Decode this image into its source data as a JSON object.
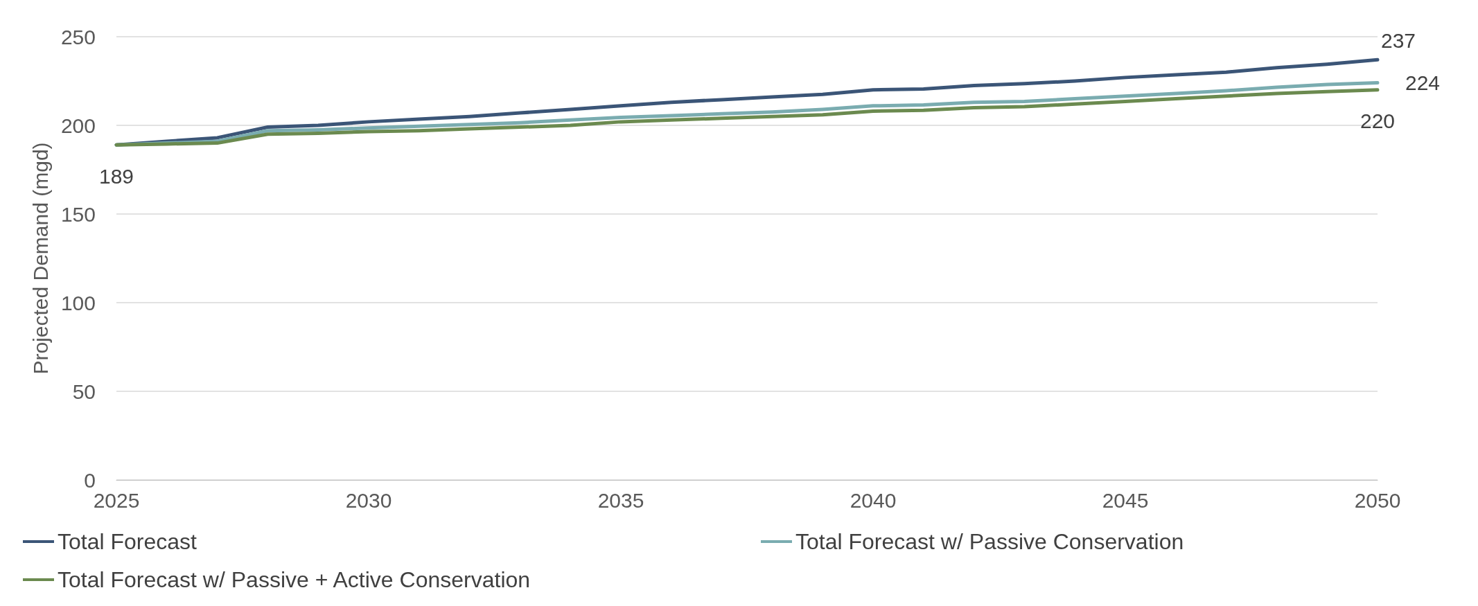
{
  "chart_data": {
    "type": "line",
    "ylabel": "Projected Demand (mgd)",
    "x": [
      2025,
      2026,
      2027,
      2028,
      2029,
      2030,
      2031,
      2032,
      2033,
      2034,
      2035,
      2036,
      2037,
      2038,
      2039,
      2040,
      2041,
      2042,
      2043,
      2044,
      2045,
      2046,
      2047,
      2048,
      2049,
      2050
    ],
    "xlim": [
      2025,
      2050
    ],
    "xticks": [
      2025,
      2030,
      2035,
      2040,
      2045,
      2050
    ],
    "ylim": [
      0,
      250
    ],
    "yticks": [
      0,
      50,
      100,
      150,
      200,
      250
    ],
    "grid": "y",
    "legend": "bottom",
    "marker": "none",
    "line_style": "solid",
    "series": [
      {
        "name": "Total Forecast",
        "color": "#3b5577",
        "values": [
          189,
          191,
          193,
          199,
          200,
          202,
          203.5,
          205,
          207,
          209,
          211,
          213,
          214.5,
          216,
          217.5,
          220,
          220.5,
          222.5,
          223.5,
          225,
          227,
          228.5,
          230,
          232.5,
          234.5,
          237
        ],
        "value_labels": [
          null,
          null,
          null,
          null,
          null,
          null,
          null,
          null,
          null,
          null,
          null,
          null,
          null,
          null,
          null,
          null,
          null,
          null,
          null,
          null,
          null,
          null,
          null,
          null,
          null,
          "237"
        ]
      },
      {
        "name": "Total Forecast w/ Passive Conservation",
        "color": "#7aacb0",
        "values": [
          189,
          190,
          191,
          197,
          197.5,
          198.5,
          199.5,
          200.5,
          201.5,
          203,
          204.5,
          205.5,
          206.5,
          207.5,
          209,
          211,
          211.5,
          213,
          213.5,
          215,
          216.5,
          218,
          219.5,
          221.5,
          223,
          224
        ],
        "value_labels": [
          null,
          null,
          null,
          null,
          null,
          null,
          null,
          null,
          null,
          null,
          null,
          null,
          null,
          null,
          null,
          null,
          null,
          null,
          null,
          null,
          null,
          null,
          null,
          null,
          null,
          "224"
        ]
      },
      {
        "name": "Total Forecast w/ Passive + Active Conservation",
        "color": "#6b8a4f",
        "values": [
          189,
          189.5,
          190,
          195,
          195.5,
          196.5,
          197,
          198,
          199,
          200,
          202,
          203,
          204,
          205,
          206,
          208,
          208.5,
          210,
          210.5,
          212,
          213.5,
          215,
          216.5,
          218,
          219,
          220
        ],
        "value_labels": [
          "189",
          null,
          null,
          null,
          null,
          null,
          null,
          null,
          null,
          null,
          null,
          null,
          null,
          null,
          null,
          null,
          null,
          null,
          null,
          null,
          null,
          null,
          null,
          null,
          null,
          "220"
        ]
      }
    ]
  }
}
